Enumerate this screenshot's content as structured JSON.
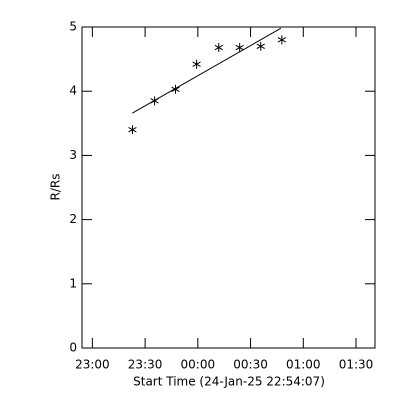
{
  "chart_data": {
    "type": "scatter",
    "xlabel": "Start Time (24-Jan-25 22:54:07)",
    "ylabel": "R/Rs",
    "xlim": [
      1374.1,
      1540.8
    ],
    "ylim": [
      0,
      5
    ],
    "xticks": [
      {
        "value": 1380,
        "label": "23:00"
      },
      {
        "value": 1410,
        "label": "23:30"
      },
      {
        "value": 1440,
        "label": "00:00"
      },
      {
        "value": 1470,
        "label": "00:30"
      },
      {
        "value": 1500,
        "label": "01:00"
      },
      {
        "value": 1530,
        "label": "01:30"
      }
    ],
    "yticks": [
      0,
      1,
      2,
      3,
      4,
      5
    ],
    "series": [
      {
        "mode": "markers",
        "marker": "asterisk",
        "color": "#000000",
        "x": [
          1402.8,
          1415.4,
          1427.3,
          1439.3,
          1451.9,
          1463.8,
          1475.8,
          1487.8
        ],
        "values": [
          3.4,
          3.85,
          4.03,
          4.42,
          4.68,
          4.68,
          4.7,
          4.8
        ]
      },
      {
        "mode": "line",
        "color": "#000000",
        "x": [
          1402.8,
          1487.2
        ],
        "values": [
          3.66,
          4.98
        ]
      }
    ]
  }
}
